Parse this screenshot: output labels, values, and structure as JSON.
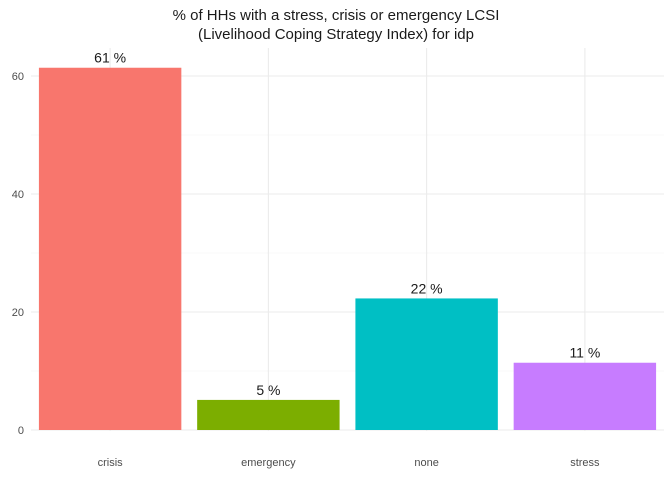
{
  "chart_data": {
    "type": "bar",
    "title_lines": [
      "% of HHs with a stress, crisis or emergency LCSI",
      "(Livelihood Coping Strategy Index) for idp"
    ],
    "xlabel": "",
    "ylabel": "",
    "categories": [
      "crisis",
      "emergency",
      "none",
      "stress"
    ],
    "values": [
      61.4,
      5.1,
      22.3,
      11.4
    ],
    "data_labels": [
      "61 %",
      "5 %",
      "22 %",
      "11 %"
    ],
    "colors": [
      "#F8766D",
      "#7CAE00",
      "#00BFC4",
      "#C77CFF"
    ],
    "ylim": [
      0,
      65
    ],
    "yticks": [
      0,
      20,
      40,
      60
    ],
    "grid": true,
    "legend": "none"
  }
}
